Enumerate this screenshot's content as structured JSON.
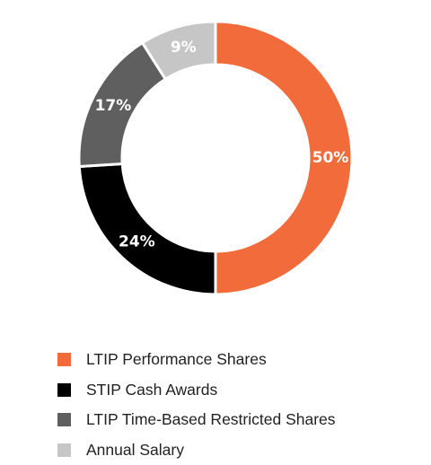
{
  "chart_data": {
    "type": "pie",
    "donut": true,
    "title": "",
    "slices": [
      {
        "name": "LTIP Performance Shares",
        "value": 50,
        "label": "50%",
        "color": "#f26b3a"
      },
      {
        "name": "STIP Cash Awards",
        "value": 24,
        "label": "24%",
        "color": "#000000"
      },
      {
        "name": "LTIP Time-Based Restricted Shares",
        "value": 17,
        "label": "17%",
        "color": "#5f5f5f"
      },
      {
        "name": "Annual Salary",
        "value": 9,
        "label": "9%",
        "color": "#c6c6c6"
      }
    ],
    "legend_position": "bottom-left"
  }
}
